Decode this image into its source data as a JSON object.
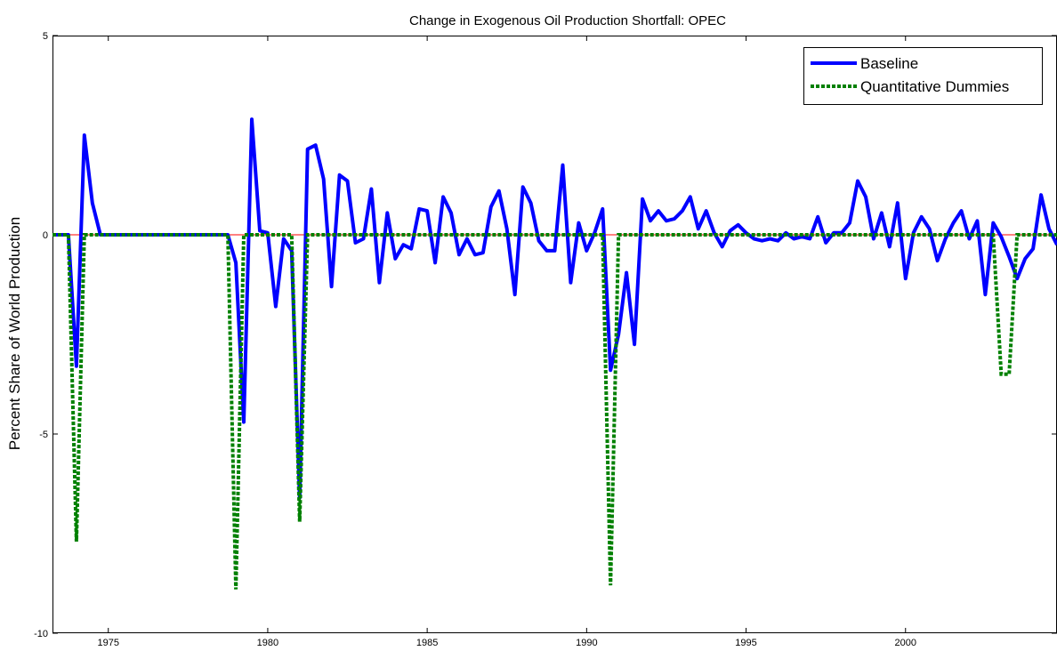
{
  "chart_data": {
    "type": "line",
    "title": "Change in Exogenous Oil Production Shortfall: OPEC",
    "xlabel": "",
    "ylabel": "Percent Share of World Production",
    "xlim": [
      1973.25,
      2004.75
    ],
    "ylim": [
      -10,
      5
    ],
    "x_ticks": [
      1975,
      1980,
      1985,
      1990,
      1995,
      2000
    ],
    "y_ticks": [
      5,
      0,
      -5,
      -10
    ],
    "grid": false,
    "zero_line": {
      "value": 0,
      "color": "#ff0000"
    },
    "legend": {
      "position": "top-right"
    },
    "series": [
      {
        "name": "Baseline",
        "color": "#0000ff",
        "style": "solid",
        "points": [
          [
            1973.25,
            0
          ],
          [
            1973.5,
            0
          ],
          [
            1973.75,
            0
          ],
          [
            1974.0,
            -3.3
          ],
          [
            1974.25,
            2.5
          ],
          [
            1974.5,
            0.8
          ],
          [
            1974.75,
            0
          ],
          [
            1975.0,
            0
          ],
          [
            1978.25,
            0
          ],
          [
            1978.5,
            0
          ],
          [
            1978.75,
            0
          ],
          [
            1979.0,
            -0.7
          ],
          [
            1979.25,
            -4.7
          ],
          [
            1979.5,
            2.9
          ],
          [
            1979.75,
            0.1
          ],
          [
            1980.0,
            0.05
          ],
          [
            1980.25,
            -1.8
          ],
          [
            1980.5,
            -0.1
          ],
          [
            1980.75,
            -0.4
          ],
          [
            1981.0,
            -6.6
          ],
          [
            1981.25,
            2.15
          ],
          [
            1981.5,
            2.25
          ],
          [
            1981.75,
            1.4
          ],
          [
            1982.0,
            -1.3
          ],
          [
            1982.25,
            1.5
          ],
          [
            1982.5,
            1.35
          ],
          [
            1982.75,
            -0.2
          ],
          [
            1983.0,
            -0.1
          ],
          [
            1983.25,
            1.15
          ],
          [
            1983.5,
            -1.2
          ],
          [
            1983.75,
            0.55
          ],
          [
            1984.0,
            -0.6
          ],
          [
            1984.25,
            -0.25
          ],
          [
            1984.5,
            -0.35
          ],
          [
            1984.75,
            0.65
          ],
          [
            1985.0,
            0.6
          ],
          [
            1985.25,
            -0.7
          ],
          [
            1985.5,
            0.95
          ],
          [
            1985.75,
            0.55
          ],
          [
            1986.0,
            -0.5
          ],
          [
            1986.25,
            -0.1
          ],
          [
            1986.5,
            -0.5
          ],
          [
            1986.75,
            -0.45
          ],
          [
            1987.0,
            0.7
          ],
          [
            1987.25,
            1.1
          ],
          [
            1987.5,
            0.15
          ],
          [
            1987.75,
            -1.5
          ],
          [
            1988.0,
            1.2
          ],
          [
            1988.25,
            0.8
          ],
          [
            1988.5,
            -0.15
          ],
          [
            1988.75,
            -0.4
          ],
          [
            1989.0,
            -0.4
          ],
          [
            1989.25,
            1.75
          ],
          [
            1989.5,
            -1.2
          ],
          [
            1989.75,
            0.3
          ],
          [
            1990.0,
            -0.4
          ],
          [
            1990.25,
            0.05
          ],
          [
            1990.5,
            0.65
          ],
          [
            1990.75,
            -3.4
          ],
          [
            1991.0,
            -2.5
          ],
          [
            1991.25,
            -0.95
          ],
          [
            1991.5,
            -2.75
          ],
          [
            1991.75,
            0.9
          ],
          [
            1992.0,
            0.35
          ],
          [
            1992.25,
            0.6
          ],
          [
            1992.5,
            0.35
          ],
          [
            1992.75,
            0.4
          ],
          [
            1993.0,
            0.6
          ],
          [
            1993.25,
            0.95
          ],
          [
            1993.5,
            0.15
          ],
          [
            1993.75,
            0.6
          ],
          [
            1994.0,
            0.05
          ],
          [
            1994.25,
            -0.3
          ],
          [
            1994.5,
            0.1
          ],
          [
            1994.75,
            0.25
          ],
          [
            1995.0,
            0.05
          ],
          [
            1995.25,
            -0.1
          ],
          [
            1995.5,
            -0.15
          ],
          [
            1995.75,
            -0.1
          ],
          [
            1996.0,
            -0.15
          ],
          [
            1996.25,
            0.05
          ],
          [
            1996.5,
            -0.1
          ],
          [
            1996.75,
            -0.05
          ],
          [
            1997.0,
            -0.1
          ],
          [
            1997.25,
            0.45
          ],
          [
            1997.5,
            -0.2
          ],
          [
            1997.75,
            0.05
          ],
          [
            1998.0,
            0.05
          ],
          [
            1998.25,
            0.3
          ],
          [
            1998.5,
            1.35
          ],
          [
            1998.75,
            0.95
          ],
          [
            1999.0,
            -0.1
          ],
          [
            1999.25,
            0.55
          ],
          [
            1999.5,
            -0.3
          ],
          [
            1999.75,
            0.8
          ],
          [
            2000.0,
            -1.1
          ],
          [
            2000.25,
            0.05
          ],
          [
            2000.5,
            0.45
          ],
          [
            2000.75,
            0.15
          ],
          [
            2001.0,
            -0.65
          ],
          [
            2001.25,
            -0.1
          ],
          [
            2001.5,
            0.3
          ],
          [
            2001.75,
            0.6
          ],
          [
            2002.0,
            -0.1
          ],
          [
            2002.25,
            0.35
          ],
          [
            2002.5,
            -1.5
          ],
          [
            2002.75,
            0.3
          ],
          [
            2003.0,
            -0.05
          ],
          [
            2003.25,
            -0.55
          ],
          [
            2003.5,
            -1.1
          ],
          [
            2003.75,
            -0.6
          ],
          [
            2004.0,
            -0.35
          ],
          [
            2004.25,
            1.0
          ],
          [
            2004.5,
            0.15
          ],
          [
            2004.75,
            -0.25
          ]
        ]
      },
      {
        "name": "Quantitative Dummies",
        "color": "#008000",
        "style": "dotted",
        "points": [
          [
            1973.25,
            0
          ],
          [
            1973.5,
            0
          ],
          [
            1973.75,
            0
          ],
          [
            1974.0,
            -7.7
          ],
          [
            1974.25,
            0
          ],
          [
            1974.5,
            0
          ],
          [
            1978.5,
            0
          ],
          [
            1978.75,
            0
          ],
          [
            1979.0,
            -8.9
          ],
          [
            1979.25,
            0
          ],
          [
            1979.5,
            0
          ],
          [
            1980.75,
            0
          ],
          [
            1981.0,
            -7.2
          ],
          [
            1981.25,
            0
          ],
          [
            1981.5,
            0
          ],
          [
            1990.5,
            0
          ],
          [
            1990.75,
            -8.8
          ],
          [
            1991.0,
            0
          ],
          [
            1991.25,
            0
          ],
          [
            2002.75,
            0
          ],
          [
            2003.0,
            -3.5
          ],
          [
            2003.25,
            -3.5
          ],
          [
            2003.5,
            0
          ],
          [
            2004.75,
            0
          ]
        ]
      }
    ]
  }
}
